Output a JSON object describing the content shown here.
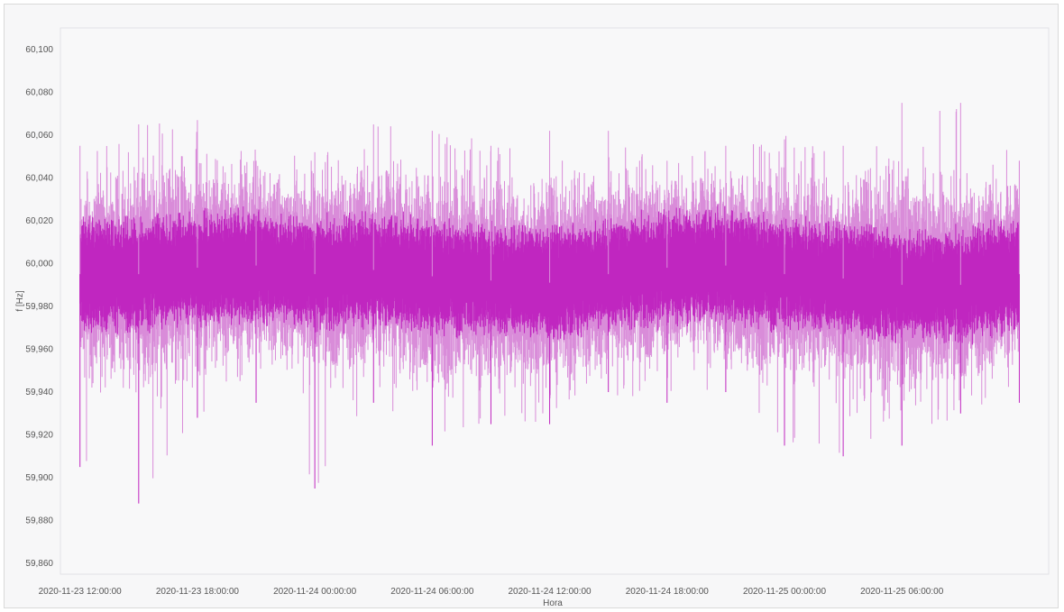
{
  "chart_data": {
    "type": "line",
    "title": "",
    "xlabel": "Hora",
    "ylabel": "f [Hz]",
    "y_ticks": [
      "60,100",
      "60,080",
      "60,060",
      "60,040",
      "60,020",
      "60,000",
      "59,980",
      "59,960",
      "59,940",
      "59,920",
      "59,900",
      "59,880",
      "59,860"
    ],
    "y_tick_values": [
      60.1,
      60.08,
      60.06,
      60.04,
      60.02,
      60.0,
      59.98,
      59.96,
      59.94,
      59.92,
      59.9,
      59.88,
      59.86
    ],
    "ylim": [
      59.855,
      60.11
    ],
    "x_ticks": [
      "2020-11-23 12:00:00",
      "2020-11-23 18:00:00",
      "2020-11-24 00:00:00",
      "2020-11-24 06:00:00",
      "2020-11-24 12:00:00",
      "2020-11-24 18:00:00",
      "2020-11-25 00:00:00",
      "2020-11-25 06:00:00"
    ],
    "xlim": [
      "2020-11-23 11:00:00",
      "2020-11-25 13:30:00"
    ],
    "grid": false,
    "legend": "none",
    "series": [
      {
        "color": "#c026c0",
        "band_color": "#d98cd9",
        "x": [
          "2020-11-23 12:00:00",
          "2020-11-23 15:00:00",
          "2020-11-23 18:00:00",
          "2020-11-23 21:00:00",
          "2020-11-24 00:00:00",
          "2020-11-24 03:00:00",
          "2020-11-24 06:00:00",
          "2020-11-24 09:00:00",
          "2020-11-24 12:00:00",
          "2020-11-24 15:00:00",
          "2020-11-24 18:00:00",
          "2020-11-24 21:00:00",
          "2020-11-25 00:00:00",
          "2020-11-25 03:00:00",
          "2020-11-25 06:00:00",
          "2020-11-25 09:00:00",
          "2020-11-25 12:00:00"
        ],
        "mean": [
          59.995,
          59.995,
          59.998,
          59.999,
          59.995,
          59.997,
          59.994,
          59.992,
          59.991,
          59.995,
          59.998,
          59.999,
          59.995,
          59.993,
          59.99,
          59.99,
          59.995
        ],
        "min": [
          59.905,
          59.888,
          59.928,
          59.935,
          59.895,
          59.935,
          59.915,
          59.925,
          59.925,
          59.94,
          59.935,
          59.94,
          59.915,
          59.91,
          59.915,
          59.93,
          59.935
        ],
        "max": [
          60.055,
          60.065,
          60.067,
          60.048,
          60.052,
          60.065,
          60.062,
          60.055,
          60.062,
          60.062,
          60.048,
          60.055,
          60.058,
          60.055,
          60.075,
          60.075,
          60.048
        ]
      }
    ]
  }
}
